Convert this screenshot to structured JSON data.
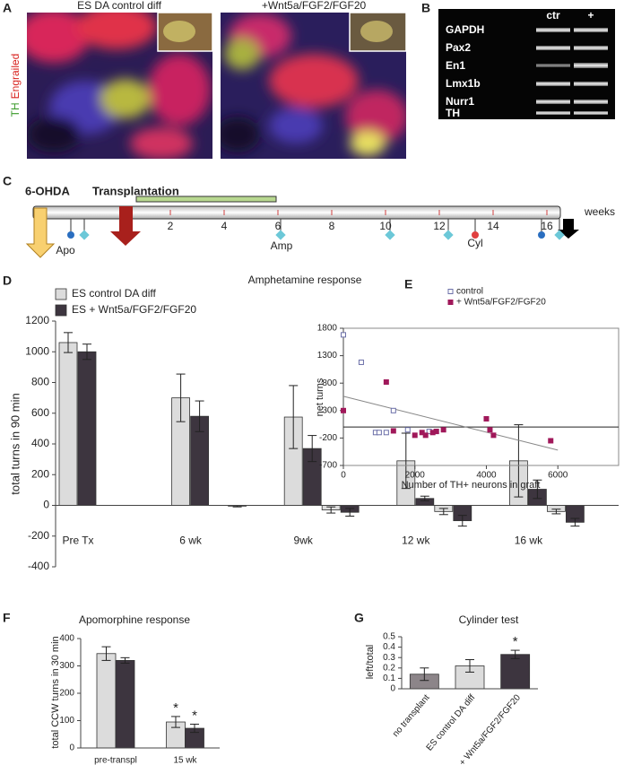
{
  "panel_letters": [
    "A",
    "B",
    "C",
    "D",
    "E",
    "F",
    "G"
  ],
  "panel_a": {
    "left_label": "ES DA control diff",
    "right_label": "+Wnt5a/FGF2/FGF20",
    "stain_green": "TH",
    "stain_red": "Engrailed"
  },
  "panel_b": {
    "columns": [
      "ctr",
      "+"
    ],
    "rows": [
      "GAPDH",
      "Pax2",
      "En1",
      "Lmx1b",
      "Nurr1",
      "TH"
    ]
  },
  "panel_c": {
    "lesion": "6-OHDA",
    "transplant": "Transplantation",
    "apo": "Apo",
    "amp": "Amp",
    "cyl": "Cyl",
    "unit": "weeks",
    "ticks": [
      2,
      4,
      6,
      8,
      10,
      12,
      14,
      16
    ]
  },
  "chart_data": [
    {
      "type": "bar",
      "title": "Amphetamine response",
      "ylabel": "total turns in 90 min",
      "categories": [
        "Pre Tx",
        "6 wk",
        "9wk",
        "12 wk",
        "16 wk"
      ],
      "series": [
        {
          "name": "ES control DA diff",
          "color": "#dcdcdc",
          "values": [
            1060,
            700,
            575,
            290,
            290
          ],
          "errors": [
            65,
            155,
            205,
            180,
            235
          ]
        },
        {
          "name": "ES + Wnt5a/FGF2/FGF20",
          "color": "#3d353f",
          "values": [
            1000,
            580,
            370,
            45,
            105
          ],
          "errors": [
            50,
            100,
            85,
            15,
            60
          ]
        },
        {
          "color": "#dcdcdc",
          "values": [
            0,
            0,
            -30,
            -40,
            -40
          ],
          "errors": [
            0,
            0,
            20,
            20,
            15
          ]
        },
        {
          "color": "#3d353f",
          "values": [
            0,
            -5,
            -45,
            -100,
            -110
          ],
          "errors": [
            0,
            5,
            25,
            35,
            25
          ]
        }
      ],
      "ylim": [
        -400,
        1200
      ],
      "yticks": [
        -400,
        -200,
        0,
        200,
        400,
        600,
        800,
        1000,
        1200
      ]
    },
    {
      "type": "scatter",
      "xlabel": "Number of TH+ neurons in graft",
      "ylabel": "net turns",
      "series": [
        {
          "name": "control",
          "color": "#6b6fa8",
          "marker": "open-square",
          "x": [
            0,
            500,
            900,
            1000,
            1200,
            1400,
            1800,
            2400,
            2600
          ],
          "y": [
            1680,
            1180,
            -100,
            -100,
            -100,
            300,
            -50,
            -80,
            -80
          ]
        },
        {
          "name": "+ Wnt5a/FGF2/FGF20",
          "color": "#a0185a",
          "marker": "filled-square",
          "x": [
            0,
            1200,
            1400,
            2000,
            2200,
            2300,
            2500,
            2600,
            2800,
            4000,
            4100,
            4200,
            5800
          ],
          "y": [
            300,
            820,
            -70,
            -150,
            -100,
            -150,
            -100,
            -80,
            -50,
            150,
            -50,
            -150,
            -250
          ]
        }
      ],
      "trend_line": {
        "x": [
          0,
          6000
        ],
        "y": [
          560,
          -420
        ]
      },
      "baseline": 0,
      "xlim": [
        0,
        7700
      ],
      "xticks": [
        0,
        2000,
        4000,
        6000
      ],
      "ylim": [
        -700,
        1800
      ],
      "yticks": [
        -700,
        -200,
        300,
        800,
        1300,
        1800
      ]
    },
    {
      "type": "bar",
      "title": "Apomorphine response",
      "ylabel": "total CCW turns in 30 min",
      "categories": [
        "pre-transpl",
        "15 wk"
      ],
      "series": [
        {
          "color": "#dcdcdc",
          "values": [
            345,
            95
          ],
          "errors": [
            25,
            20
          ],
          "annotations": [
            null,
            "*"
          ]
        },
        {
          "color": "#3d353f",
          "values": [
            320,
            72
          ],
          "errors": [
            10,
            15
          ],
          "annotations": [
            null,
            "*"
          ]
        }
      ],
      "ylim": [
        0,
        400
      ],
      "yticks": [
        0,
        100,
        200,
        300,
        400
      ]
    },
    {
      "type": "bar",
      "title": "Cylinder test",
      "ylabel": "left/total",
      "categories": [
        "no transplant",
        "ES control DA diff",
        "ES + Wnt5a/FGF2/FGF20"
      ],
      "series": [
        {
          "colors": [
            "#8c8589",
            "#dcdcdc",
            "#3d353f"
          ],
          "values": [
            0.14,
            0.22,
            0.33
          ],
          "errors": [
            0.06,
            0.06,
            0.04
          ],
          "annotations": [
            null,
            null,
            "*"
          ]
        }
      ],
      "ylim": [
        0,
        0.5
      ],
      "yticks": [
        0,
        0.1,
        0.2,
        0.3,
        0.4,
        0.5
      ]
    }
  ]
}
